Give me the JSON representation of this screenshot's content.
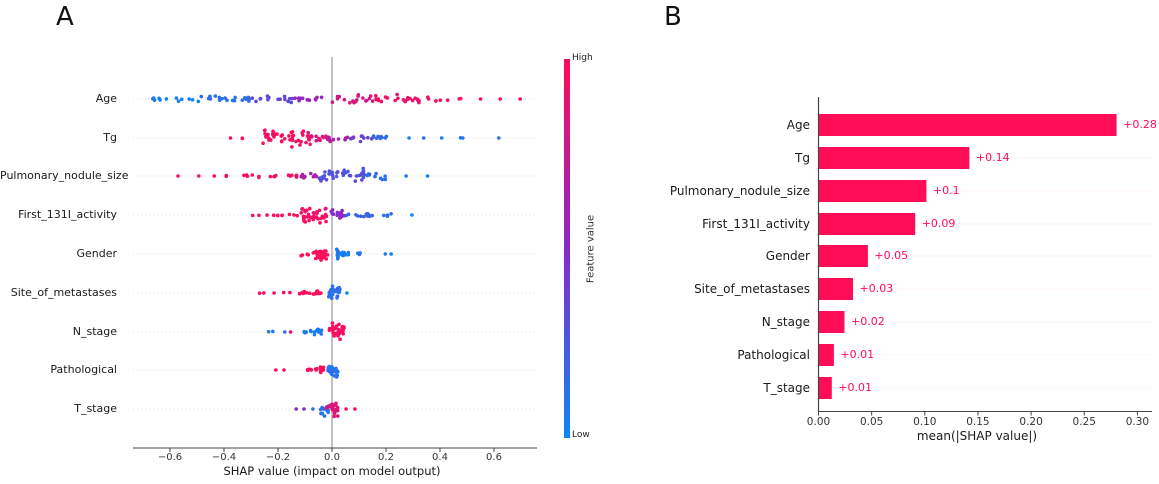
{
  "panels": {
    "a": {
      "letter": "A"
    },
    "b": {
      "letter": "B"
    }
  },
  "chart_data": [
    {
      "panel": "A",
      "type": "scatter",
      "subtype": "shap-beeswarm-summary",
      "xlabel": "SHAP value (impact on model output)",
      "xticks": [
        -0.6,
        -0.4,
        -0.2,
        0.0,
        0.2,
        0.4,
        0.6
      ],
      "xlim": [
        -0.74,
        0.76
      ],
      "features": [
        "Age",
        "Tg",
        "Pulmonary_nodule_size",
        "First_131I_activity",
        "Gender",
        "Site_of_metastases",
        "N_stage",
        "Pathological",
        "T_stage"
      ],
      "colorbar": {
        "label": "Feature value",
        "high_label": "High",
        "low_label": "Low",
        "high_color": "#ff0d57",
        "mid_color": "#8c28c3",
        "low_color": "#0d86f5"
      },
      "cluster_format": "[shap_min, shap_max, n_points, feature_value_0to1, y_jitter_px]",
      "point_clusters": {
        "Age": [
          [
            -0.67,
            -0.45,
            12,
            0.04,
            4
          ],
          [
            -0.5,
            -0.29,
            20,
            0.13,
            5
          ],
          [
            -0.3,
            -0.13,
            16,
            0.35,
            5
          ],
          [
            -0.14,
            -0.01,
            12,
            0.55,
            5
          ],
          [
            0.0,
            0.17,
            18,
            0.8,
            5
          ],
          [
            0.15,
            0.36,
            24,
            0.92,
            6
          ],
          [
            0.36,
            0.43,
            4,
            0.97,
            3
          ],
          [
            0.45,
            0.48,
            2,
            1,
            1
          ],
          [
            0.545,
            0.555,
            1,
            1,
            0
          ],
          [
            0.615,
            0.625,
            1,
            1,
            0
          ],
          [
            0.69,
            0.7,
            1,
            1,
            0
          ]
        ],
        "Tg": [
          [
            -0.385,
            -0.375,
            1,
            1,
            0
          ],
          [
            -0.34,
            -0.32,
            2,
            1,
            1
          ],
          [
            -0.26,
            -0.08,
            46,
            0.95,
            12
          ],
          [
            -0.1,
            -0.01,
            14,
            0.85,
            6
          ],
          [
            -0.02,
            0.08,
            12,
            0.6,
            4
          ],
          [
            0.06,
            0.16,
            10,
            0.35,
            4
          ],
          [
            0.14,
            0.25,
            8,
            0.15,
            3
          ],
          [
            0.285,
            0.295,
            1,
            0.05,
            0
          ],
          [
            0.335,
            0.345,
            1,
            0.05,
            0
          ],
          [
            0.4,
            0.41,
            1,
            0.05,
            0
          ],
          [
            0.475,
            0.485,
            2,
            0.05,
            1
          ],
          [
            0.615,
            0.625,
            1,
            0.05,
            0
          ]
        ],
        "Pulmonary_nodule_size": [
          [
            -0.575,
            -0.565,
            1,
            1,
            0
          ],
          [
            -0.5,
            -0.49,
            1,
            1,
            0
          ],
          [
            -0.445,
            -0.435,
            1,
            1,
            0
          ],
          [
            -0.4,
            -0.39,
            2,
            1,
            1
          ],
          [
            -0.34,
            -0.21,
            9,
            1,
            2
          ],
          [
            -0.21,
            -0.12,
            8,
            0.95,
            2
          ],
          [
            -0.13,
            -0.04,
            12,
            0.6,
            4
          ],
          [
            -0.05,
            0.13,
            38,
            0.28,
            9
          ],
          [
            0.12,
            0.21,
            10,
            0.12,
            4
          ],
          [
            0.265,
            0.275,
            1,
            0.05,
            0
          ],
          [
            0.345,
            0.355,
            1,
            0.05,
            0
          ]
        ],
        "First_131I_activity": [
          [
            -0.31,
            -0.27,
            2,
            1,
            1
          ],
          [
            -0.25,
            -0.12,
            9,
            1,
            2
          ],
          [
            -0.115,
            -0.02,
            40,
            0.95,
            11
          ],
          [
            -0.01,
            0.05,
            16,
            0.5,
            8
          ],
          [
            0.05,
            0.15,
            12,
            0.18,
            4
          ],
          [
            0.16,
            0.23,
            4,
            0.08,
            2
          ],
          [
            0.295,
            0.305,
            1,
            0.05,
            0
          ]
        ],
        "Gender": [
          [
            -0.115,
            -0.085,
            4,
            1,
            2
          ],
          [
            -0.07,
            -0.015,
            32,
            1,
            10
          ],
          [
            0.015,
            0.05,
            16,
            0.06,
            8
          ],
          [
            0.04,
            0.105,
            10,
            0.06,
            3
          ],
          [
            0.19,
            0.2,
            1,
            0.05,
            0
          ],
          [
            0.215,
            0.225,
            1,
            0.05,
            0
          ]
        ],
        "Site_of_metastases": [
          [
            -0.275,
            -0.245,
            2,
            1,
            1
          ],
          [
            -0.215,
            -0.205,
            1,
            1,
            0
          ],
          [
            -0.185,
            -0.155,
            2,
            1,
            1
          ],
          [
            -0.125,
            -0.05,
            12,
            1,
            2
          ],
          [
            -0.07,
            -0.04,
            8,
            1,
            4
          ],
          [
            -0.015,
            0.035,
            32,
            0.12,
            10
          ],
          [
            0.055,
            0.065,
            1,
            0.05,
            0
          ]
        ],
        "N_stage": [
          [
            -0.245,
            -0.215,
            2,
            0.05,
            1
          ],
          [
            -0.175,
            -0.165,
            1,
            0.1,
            0
          ],
          [
            -0.155,
            -0.145,
            1,
            0.9,
            0
          ],
          [
            -0.105,
            -0.055,
            8,
            0.06,
            2
          ],
          [
            -0.065,
            -0.03,
            10,
            0.06,
            5
          ],
          [
            -0.01,
            0.045,
            32,
            0.97,
            11
          ]
        ],
        "Pathological": [
          [
            -0.215,
            -0.205,
            1,
            1,
            0
          ],
          [
            -0.18,
            -0.17,
            1,
            1,
            0
          ],
          [
            -0.095,
            -0.05,
            8,
            1,
            2
          ],
          [
            -0.06,
            -0.03,
            10,
            1,
            4
          ],
          [
            -0.015,
            0.025,
            32,
            0.1,
            11
          ]
        ],
        "T_stage": [
          [
            -0.135,
            -0.125,
            1,
            0.5,
            0
          ],
          [
            -0.105,
            -0.095,
            1,
            0.5,
            0
          ],
          [
            -0.08,
            -0.07,
            1,
            0.15,
            0
          ],
          [
            -0.045,
            -0.005,
            16,
            0.12,
            10
          ],
          [
            -0.02,
            0.025,
            22,
            0.85,
            11
          ],
          [
            0.05,
            0.06,
            1,
            1,
            0
          ],
          [
            0.075,
            0.085,
            1,
            1,
            1
          ]
        ]
      }
    },
    {
      "panel": "B",
      "type": "bar",
      "orientation": "horizontal",
      "categories": [
        "Age",
        "Tg",
        "Pulmonary_nodule_size",
        "First_131I_activity",
        "Gender",
        "Site_of_metastases",
        "N_stage",
        "Pathological",
        "T_stage"
      ],
      "values": [
        0.28,
        0.14,
        0.1,
        0.09,
        0.05,
        0.03,
        0.02,
        0.01,
        0.01
      ],
      "value_labels": [
        "+0.28",
        "+0.14",
        "+0.1",
        "+0.09",
        "+0.05",
        "+0.03",
        "+0.02",
        "+0.01",
        "+0.01"
      ],
      "bar_lengths": [
        0.28,
        0.1415,
        0.101,
        0.0905,
        0.046,
        0.032,
        0.024,
        0.014,
        0.012
      ],
      "xlabel": "mean(|SHAP value|)",
      "xticks": [
        0.0,
        0.05,
        0.1,
        0.15,
        0.2,
        0.25,
        0.3
      ],
      "xlim": [
        0,
        0.315
      ],
      "bar_color": "#ff0d57",
      "grid": "faint horizontal row lines"
    }
  ]
}
